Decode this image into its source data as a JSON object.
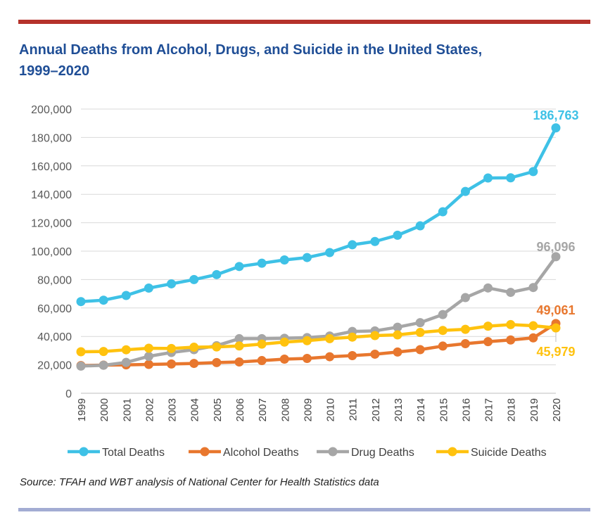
{
  "title_line1": "Annual Deaths from Alcohol, Drugs, and Suicide in the United States,",
  "title_line2": "1999–2020",
  "source": "Source: TFAH and WBT analysis of National Center for Health Statistics data",
  "colors": {
    "top_bar": "#b5322b",
    "title": "#1f4e96",
    "bottom_bar": "#a3acd3"
  },
  "chart_data": {
    "type": "line",
    "x": [
      "1999",
      "2000",
      "2001",
      "2002",
      "2003",
      "2004",
      "2005",
      "2006",
      "2007",
      "2008",
      "2009",
      "2010",
      "2011",
      "2012",
      "2013",
      "2014",
      "2015",
      "2016",
      "2017",
      "2018",
      "2019",
      "2020"
    ],
    "ylim": [
      0,
      200000
    ],
    "yticks": [
      0,
      20000,
      40000,
      60000,
      80000,
      100000,
      120000,
      140000,
      160000,
      180000,
      200000
    ],
    "ytick_labels": [
      "0",
      "20,000",
      "40,000",
      "60,000",
      "80,000",
      "100,000",
      "120,000",
      "140,000",
      "160,000",
      "180,000",
      "200,000"
    ],
    "grid": true,
    "legend_position": "bottom",
    "series": [
      {
        "name": "Total Deaths",
        "color": "#3ec1e6",
        "values": [
          64500,
          65500,
          68800,
          74000,
          77000,
          80000,
          83500,
          89200,
          91500,
          93800,
          95500,
          99000,
          104500,
          106800,
          111200,
          117800,
          127700,
          142000,
          151500,
          151600,
          156000,
          186763
        ],
        "end_label": "186,763"
      },
      {
        "name": "Alcohol Deaths",
        "color": "#e8772e",
        "values": [
          19500,
          19800,
          20000,
          20300,
          20600,
          21000,
          21600,
          22000,
          23000,
          24000,
          24500,
          25700,
          26500,
          27500,
          29000,
          30700,
          33200,
          34900,
          36300,
          37500,
          39000,
          49061
        ],
        "end_label": "49,061"
      },
      {
        "name": "Drug Deaths",
        "color": "#a6a6a6",
        "values": [
          19100,
          19700,
          21700,
          26000,
          28700,
          30700,
          33500,
          38400,
          38400,
          38700,
          39200,
          40300,
          43500,
          43900,
          46500,
          49700,
          55400,
          67300,
          74100,
          71000,
          74400,
          96096
        ],
        "end_label": "96,096"
      },
      {
        "name": "Suicide Deaths",
        "color": "#ffc20e",
        "values": [
          29200,
          29400,
          30600,
          31700,
          31500,
          32400,
          32600,
          33300,
          34600,
          36000,
          37000,
          38400,
          39500,
          40600,
          41100,
          42800,
          44200,
          45000,
          47200,
          48300,
          47500,
          45979
        ],
        "end_label": "45,979"
      }
    ]
  }
}
